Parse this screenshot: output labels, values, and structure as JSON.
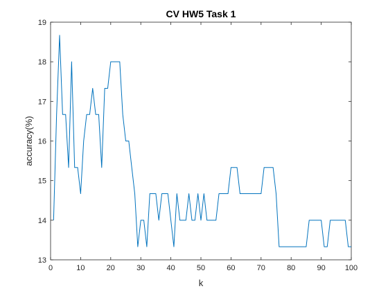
{
  "chart_data": {
    "type": "line",
    "title": "CV HW5 Task 1",
    "xlabel": "k",
    "ylabel": "accuracy(%)",
    "xlim": [
      0,
      100
    ],
    "ylim": [
      13,
      19
    ],
    "xticks": [
      0,
      10,
      20,
      30,
      40,
      50,
      60,
      70,
      80,
      90,
      100
    ],
    "yticks": [
      13,
      14,
      15,
      16,
      17,
      18,
      19
    ],
    "grid": false,
    "line_color": "#0072BD",
    "series": [
      {
        "x": [
          1,
          2,
          3,
          4,
          5,
          6,
          7,
          8,
          9,
          10,
          11,
          12,
          13,
          14,
          15,
          16,
          17,
          18,
          19,
          20,
          21,
          22,
          23,
          24,
          25,
          26,
          27,
          28,
          29,
          30,
          31,
          32,
          33,
          34,
          35,
          36,
          37,
          38,
          39,
          40,
          41,
          42,
          43,
          44,
          45,
          46,
          47,
          48,
          49,
          50,
          51,
          52,
          53,
          54,
          55,
          56,
          57,
          58,
          59,
          60,
          61,
          62,
          63,
          64,
          65,
          66,
          67,
          68,
          69,
          70,
          71,
          72,
          73,
          74,
          75,
          76,
          77,
          78,
          79,
          80,
          81,
          82,
          83,
          84,
          85,
          86,
          87,
          88,
          89,
          90,
          91,
          92,
          93,
          94,
          95,
          96,
          97,
          98,
          99,
          100
        ],
        "values": [
          14.0,
          16.67,
          18.67,
          16.67,
          16.67,
          15.33,
          18.0,
          15.33,
          15.33,
          14.67,
          16.0,
          16.67,
          16.67,
          17.33,
          16.67,
          16.67,
          15.33,
          17.33,
          17.33,
          18.0,
          18.0,
          18.0,
          18.0,
          16.67,
          16.0,
          16.0,
          15.33,
          14.67,
          13.33,
          14.0,
          14.0,
          13.33,
          14.67,
          14.67,
          14.67,
          14.0,
          14.67,
          14.67,
          14.67,
          14.0,
          13.33,
          14.67,
          14.0,
          14.0,
          14.0,
          14.67,
          14.0,
          14.0,
          14.67,
          14.0,
          14.67,
          14.0,
          14.0,
          14.0,
          14.0,
          14.67,
          14.67,
          14.67,
          14.67,
          15.33,
          15.33,
          15.33,
          14.67,
          14.67,
          14.67,
          14.67,
          14.67,
          14.67,
          14.67,
          14.67,
          15.33,
          15.33,
          15.33,
          15.33,
          14.67,
          13.33,
          13.33,
          13.33,
          13.33,
          13.33,
          13.33,
          13.33,
          13.33,
          13.33,
          13.33,
          14.0,
          14.0,
          14.0,
          14.0,
          14.0,
          13.33,
          13.33,
          14.0,
          14.0,
          14.0,
          14.0,
          14.0,
          14.0,
          13.33,
          13.33
        ]
      }
    ]
  }
}
